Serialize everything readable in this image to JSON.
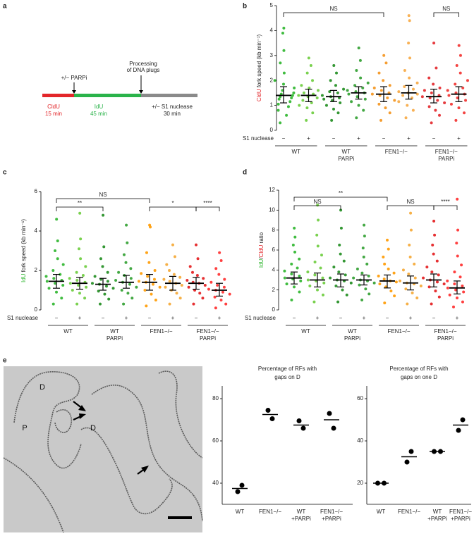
{
  "panel_labels": [
    "a",
    "b",
    "c",
    "d",
    "e"
  ],
  "schematic": {
    "parpi": "+/− PARPi",
    "processing": [
      "Processing",
      "of DNA plugs"
    ],
    "segments": [
      {
        "label": "CldU",
        "time": "15 min"
      },
      {
        "label": "IdU",
        "time": "45 min"
      },
      {
        "label": "+/− S1 nuclease",
        "time": "30 min"
      }
    ]
  },
  "micrograph": {
    "labels": [
      "D",
      "P",
      "D"
    ]
  },
  "chart_data": [
    {
      "type": "swarm",
      "ylabel": [
        {
          "text": "CldU",
          "color": "#e3262a"
        },
        {
          "text": " fork speed (kb min⁻¹)"
        }
      ],
      "ylim": [
        0,
        5
      ],
      "yticks": [
        0,
        1,
        2,
        3,
        4,
        5
      ],
      "xlabel": "S1 nuclease",
      "treatments": [
        "−",
        "+",
        "−",
        "+",
        "−",
        "+",
        "−",
        "+"
      ],
      "groups": [
        [
          "WT"
        ],
        [
          "WT",
          "PARPi"
        ],
        [
          "FEN1−/−"
        ],
        [
          "FEN1−/−",
          "PARPi"
        ]
      ],
      "brackets": [
        {
          "from": 0,
          "to": 4,
          "label": "NS"
        },
        {
          "from": 6,
          "to": 7,
          "label": "NS"
        }
      ],
      "series": [
        {
          "color": "#2bb52b",
          "median": 1.4,
          "q1": 1.1,
          "q3": 1.75,
          "values": [
            0.3,
            0.6,
            0.8,
            0.95,
            1.05,
            1.15,
            1.25,
            1.3,
            1.35,
            1.4,
            1.45,
            1.5,
            1.6,
            1.7,
            1.85,
            2.0,
            2.3,
            2.7,
            3.2,
            3.9,
            4.1
          ]
        },
        {
          "color": "#6ccc3c",
          "median": 1.4,
          "q1": 1.15,
          "q3": 1.65,
          "values": [
            0.4,
            0.7,
            0.9,
            1.0,
            1.1,
            1.2,
            1.3,
            1.35,
            1.4,
            1.45,
            1.5,
            1.6,
            1.7,
            1.8,
            2.0,
            2.3,
            2.6,
            2.9
          ]
        },
        {
          "color": "#1e8c1e",
          "median": 1.35,
          "q1": 1.15,
          "q3": 1.6,
          "values": [
            0.4,
            0.7,
            0.85,
            1.0,
            1.1,
            1.2,
            1.25,
            1.3,
            1.35,
            1.4,
            1.5,
            1.55,
            1.65,
            1.8,
            2.0,
            2.3,
            2.6
          ]
        },
        {
          "color": "#2f9e2f",
          "median": 1.5,
          "q1": 1.25,
          "q3": 1.75,
          "values": [
            0.5,
            0.8,
            1.0,
            1.15,
            1.25,
            1.35,
            1.45,
            1.5,
            1.55,
            1.6,
            1.7,
            1.8,
            1.9,
            2.1,
            2.4,
            2.8,
            3.3
          ]
        },
        {
          "color": "#f4941c",
          "median": 1.45,
          "q1": 1.15,
          "q3": 1.75,
          "values": [
            0.4,
            0.7,
            0.9,
            1.05,
            1.2,
            1.3,
            1.4,
            1.45,
            1.5,
            1.6,
            1.7,
            1.8,
            2.0,
            2.3,
            2.7,
            3.0
          ]
        },
        {
          "color": "#f7a842",
          "median": 1.5,
          "q1": 1.25,
          "q3": 1.8,
          "values": [
            0.5,
            0.8,
            1.0,
            1.15,
            1.3,
            1.4,
            1.45,
            1.5,
            1.55,
            1.65,
            1.75,
            1.9,
            2.1,
            2.4,
            2.9,
            3.5,
            4.4,
            4.6
          ]
        },
        {
          "color": "#e3262a",
          "median": 1.35,
          "q1": 1.1,
          "q3": 1.65,
          "values": [
            0.3,
            0.6,
            0.8,
            0.95,
            1.1,
            1.2,
            1.3,
            1.35,
            1.4,
            1.5,
            1.6,
            1.7,
            1.85,
            2.1,
            2.5,
            3.5
          ]
        },
        {
          "color": "#f2302e",
          "median": 1.45,
          "q1": 1.15,
          "q3": 1.75,
          "values": [
            0.4,
            0.7,
            0.9,
            1.05,
            1.2,
            1.3,
            1.4,
            1.45,
            1.5,
            1.6,
            1.7,
            1.85,
            2.0,
            2.3,
            2.6,
            3.0,
            3.4
          ]
        }
      ]
    },
    {
      "type": "swarm",
      "ylabel": [
        {
          "text": "IdU",
          "color": "#2bb52b"
        },
        {
          "text": " fork speed (kb min⁻¹)"
        }
      ],
      "ylim": [
        0,
        6
      ],
      "yticks": [
        0,
        2,
        4,
        6
      ],
      "xlabel": "S1 nuclease",
      "treatments": [
        "−",
        "+",
        "−",
        "+",
        "−",
        "+",
        "−",
        "+"
      ],
      "groups": [
        [
          "WT"
        ],
        [
          "WT",
          "PARPi"
        ],
        [
          "FEN1−/−"
        ],
        [
          "FEN1−/−",
          "PARPi"
        ]
      ],
      "brackets": [
        {
          "from": 0,
          "to": 4,
          "label": "NS"
        },
        {
          "from": 0,
          "to": 2,
          "label": "**"
        },
        {
          "from": 4,
          "to": 6,
          "label": "*"
        },
        {
          "from": 6,
          "to": 7,
          "label": "****"
        }
      ],
      "series": [
        {
          "color": "#2bb52b",
          "median": 1.45,
          "q1": 1.1,
          "q3": 1.8,
          "values": [
            0.3,
            0.6,
            0.9,
            1.1,
            1.25,
            1.35,
            1.45,
            1.5,
            1.6,
            1.7,
            1.8,
            2.0,
            2.3,
            2.6,
            3.0,
            3.5,
            4.6
          ]
        },
        {
          "color": "#6ccc3c",
          "median": 1.35,
          "q1": 1.05,
          "q3": 1.65,
          "values": [
            0.3,
            0.6,
            0.85,
            1.0,
            1.15,
            1.25,
            1.35,
            1.4,
            1.5,
            1.6,
            1.75,
            1.9,
            2.2,
            2.6,
            3.1,
            3.6,
            4.9
          ]
        },
        {
          "color": "#1e8c1e",
          "median": 1.3,
          "q1": 1.0,
          "q3": 1.6,
          "values": [
            0.3,
            0.55,
            0.8,
            0.95,
            1.1,
            1.2,
            1.3,
            1.35,
            1.45,
            1.55,
            1.7,
            1.9,
            2.2,
            2.6,
            3.2,
            4.8
          ]
        },
        {
          "color": "#2f9e2f",
          "median": 1.4,
          "q1": 1.1,
          "q3": 1.75,
          "values": [
            0.3,
            0.6,
            0.85,
            1.0,
            1.15,
            1.3,
            1.4,
            1.5,
            1.6,
            1.75,
            1.9,
            2.1,
            2.4,
            2.8,
            3.4,
            4.3
          ]
        },
        {
          "color": "#ff9a00",
          "median": 1.4,
          "q1": 1.0,
          "q3": 1.8,
          "values": [
            0.2,
            0.5,
            0.8,
            1.0,
            1.15,
            1.3,
            1.4,
            1.45,
            1.55,
            1.7,
            1.85,
            2.0,
            2.4,
            2.9,
            4.2,
            4.3
          ]
        },
        {
          "color": "#f5a733",
          "median": 1.35,
          "q1": 1.0,
          "q3": 1.7,
          "values": [
            0.3,
            0.6,
            0.85,
            1.0,
            1.15,
            1.25,
            1.35,
            1.45,
            1.55,
            1.65,
            1.8,
            2.0,
            2.3,
            2.7,
            3.3
          ]
        },
        {
          "color": "#e31a1c",
          "median": 1.35,
          "q1": 1.05,
          "q3": 1.65,
          "values": [
            0.3,
            0.6,
            0.85,
            1.0,
            1.15,
            1.25,
            1.35,
            1.4,
            1.5,
            1.6,
            1.75,
            1.9,
            2.2,
            2.6,
            3.3
          ]
        },
        {
          "color": "#ff2b2b",
          "median": 1.0,
          "q1": 0.7,
          "q3": 1.35,
          "values": [
            0.1,
            0.3,
            0.5,
            0.65,
            0.8,
            0.9,
            1.0,
            1.05,
            1.15,
            1.25,
            1.4,
            1.55,
            1.8,
            2.1,
            2.5,
            2.9
          ]
        }
      ]
    },
    {
      "type": "swarm",
      "ylabel": [
        {
          "text": "IdU",
          "color": "#2bb52b"
        },
        {
          "text": "/"
        },
        {
          "text": "CldU",
          "color": "#e3262a"
        },
        {
          "text": " ratio"
        }
      ],
      "ylim": [
        0,
        12
      ],
      "yticks": [
        0,
        2,
        4,
        6,
        8,
        10,
        12
      ],
      "xlabel": "S1 nuclease",
      "treatments": [
        "−",
        "+",
        "−",
        "+",
        "−",
        "+",
        "−",
        "+"
      ],
      "groups": [
        [
          "WT"
        ],
        [
          "WT",
          "PARPi"
        ],
        [
          "FEN1−/−"
        ],
        [
          "FEN1−/−",
          "PARPi"
        ]
      ],
      "brackets": [
        {
          "from": 0,
          "to": 4,
          "label": "**"
        },
        {
          "from": 0,
          "to": 2,
          "label": "NS"
        },
        {
          "from": 4,
          "to": 6,
          "label": "NS"
        },
        {
          "from": 6,
          "to": 7,
          "label": "****"
        }
      ],
      "series": [
        {
          "color": "#2bb52b",
          "median": 3.2,
          "q1": 2.6,
          "q3": 3.8,
          "values": [
            1.0,
            1.8,
            2.3,
            2.6,
            2.9,
            3.1,
            3.2,
            3.4,
            3.6,
            3.9,
            4.2,
            4.6,
            5.1,
            5.8,
            6.5,
            7.3,
            8.2
          ]
        },
        {
          "color": "#6ccc3c",
          "median": 3.0,
          "q1": 2.3,
          "q3": 3.7,
          "values": [
            0.8,
            1.5,
            2.0,
            2.4,
            2.7,
            2.9,
            3.0,
            3.2,
            3.5,
            3.8,
            4.2,
            4.8,
            5.5,
            6.4,
            7.5,
            9.0,
            10.5
          ]
        },
        {
          "color": "#1e8c1e",
          "median": 3.0,
          "q1": 2.3,
          "q3": 3.6,
          "values": [
            0.8,
            1.5,
            2.0,
            2.4,
            2.7,
            2.9,
            3.0,
            3.2,
            3.5,
            3.8,
            4.3,
            4.9,
            5.6,
            6.5,
            8.2,
            10.0
          ]
        },
        {
          "color": "#2f9e2f",
          "median": 3.0,
          "q1": 2.5,
          "q3": 3.5,
          "values": [
            1.0,
            1.6,
            2.1,
            2.5,
            2.7,
            2.9,
            3.0,
            3.2,
            3.4,
            3.7,
            4.1,
            4.6,
            5.3,
            6.2,
            7.4,
            8.5
          ]
        },
        {
          "color": "#ff9a00",
          "median": 2.9,
          "q1": 2.2,
          "q3": 3.5,
          "values": [
            0.7,
            1.4,
            1.9,
            2.3,
            2.6,
            2.8,
            2.9,
            3.1,
            3.4,
            3.7,
            4.1,
            4.6,
            5.3,
            6.1,
            7.0
          ]
        },
        {
          "color": "#f5a733",
          "median": 2.7,
          "q1": 2.0,
          "q3": 3.4,
          "values": [
            0.6,
            1.2,
            1.7,
            2.1,
            2.4,
            2.6,
            2.7,
            2.9,
            3.2,
            3.6,
            4.0,
            4.6,
            5.3,
            6.5,
            8.0,
            9.7
          ]
        },
        {
          "color": "#e31a1c",
          "median": 3.0,
          "q1": 2.3,
          "q3": 3.6,
          "values": [
            0.6,
            1.3,
            1.9,
            2.3,
            2.6,
            2.8,
            3.0,
            3.2,
            3.5,
            3.8,
            4.3,
            4.9,
            5.6,
            6.5,
            7.5,
            8.9
          ]
        },
        {
          "color": "#ff2b2b",
          "median": 2.2,
          "q1": 1.6,
          "q3": 2.9,
          "values": [
            0.3,
            0.8,
            1.2,
            1.5,
            1.8,
            2.0,
            2.2,
            2.4,
            2.6,
            2.9,
            3.3,
            3.8,
            4.5,
            5.4,
            6.7,
            8.0,
            11.1
          ]
        }
      ]
    },
    {
      "type": "dot",
      "title": [
        "Percentage of RFs with",
        "gaps on D"
      ],
      "categories": [
        [
          "WT"
        ],
        [
          "FEN1−/−"
        ],
        [
          "WT",
          "+PARPi"
        ],
        [
          "FEN1−/−",
          "+PARPi"
        ]
      ],
      "points": [
        [
          36,
          39
        ],
        [
          74.5,
          70.5
        ],
        [
          69.5,
          66
        ],
        [
          73,
          66
        ]
      ],
      "means": [
        37.5,
        72.5,
        67.5,
        70
      ],
      "ylim": [
        30,
        86
      ],
      "yticks": [
        40,
        60,
        80
      ]
    },
    {
      "type": "dot",
      "title": [
        "Percentage of RFs with",
        "gaps on one D"
      ],
      "categories": [
        [
          "WT"
        ],
        [
          "FEN1−/−"
        ],
        [
          "WT",
          "+PARPi"
        ],
        [
          "FEN1−/−",
          "+PARPi"
        ]
      ],
      "points": [
        [
          20,
          20
        ],
        [
          30,
          35
        ],
        [
          35,
          35
        ],
        [
          45,
          50
        ]
      ],
      "means": [
        20,
        32.5,
        35,
        47.5
      ],
      "ylim": [
        10,
        66
      ],
      "yticks": [
        20,
        40,
        60
      ]
    }
  ]
}
